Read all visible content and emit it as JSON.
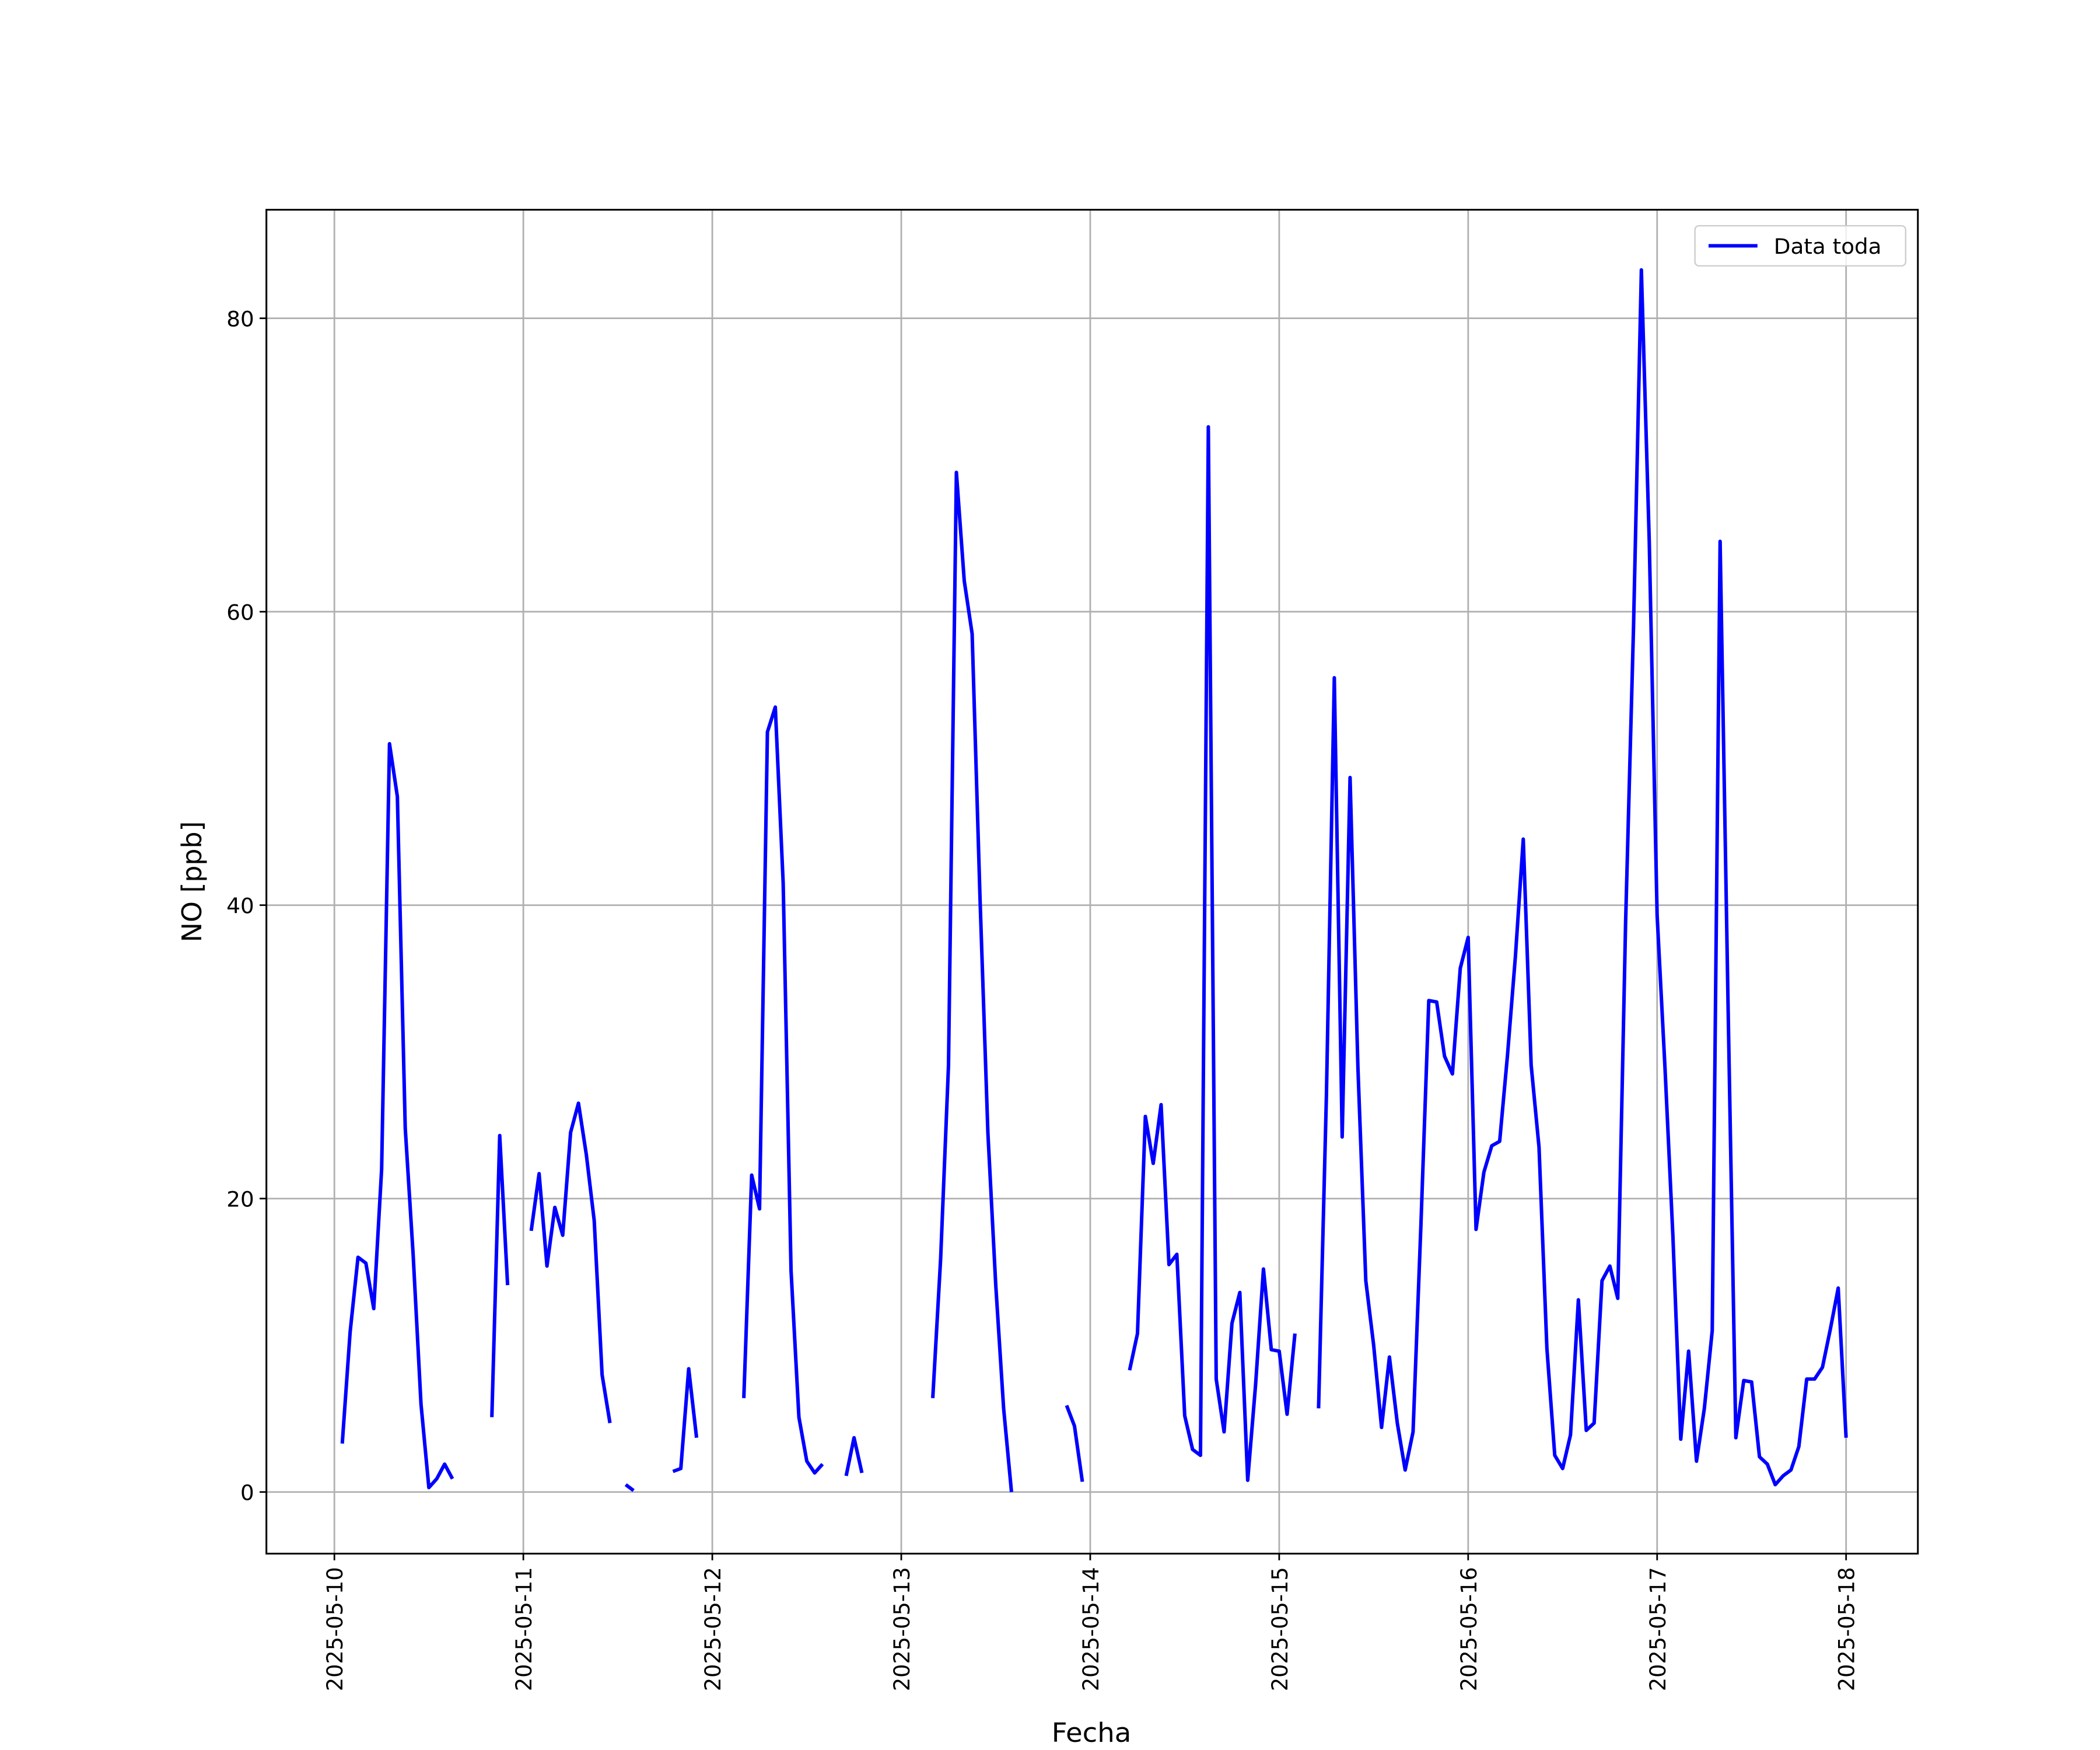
{
  "chart_data": {
    "type": "line",
    "xlabel": "Fecha",
    "ylabel": "NO [ppb]",
    "x": [
      "2025-05-10 01:00",
      "2025-05-10 02:00",
      "2025-05-10 03:00",
      "2025-05-10 04:00",
      "2025-05-10 05:00",
      "2025-05-10 06:00",
      "2025-05-10 07:00",
      "2025-05-10 08:00",
      "2025-05-10 09:00",
      "2025-05-10 10:00",
      "2025-05-10 11:00",
      "2025-05-10 12:00",
      "2025-05-10 13:00",
      "2025-05-10 14:00",
      "2025-05-10 15:00",
      "2025-05-10 16:00",
      "2025-05-10 17:00",
      "2025-05-10 18:00",
      "2025-05-10 19:00",
      "2025-05-10 20:00",
      "2025-05-10 21:00",
      "2025-05-10 22:00",
      "2025-05-10 23:00",
      "2025-05-11 00:00",
      "2025-05-11 01:00",
      "2025-05-11 02:00",
      "2025-05-11 03:00",
      "2025-05-11 04:00",
      "2025-05-11 05:00",
      "2025-05-11 06:00",
      "2025-05-11 07:00",
      "2025-05-11 08:00",
      "2025-05-11 09:00",
      "2025-05-11 10:00",
      "2025-05-11 11:00",
      "2025-05-11 12:00",
      "2025-05-11 13:00",
      "2025-05-11 14:00",
      "2025-05-11 15:00",
      "2025-05-11 16:00",
      "2025-05-11 17:00",
      "2025-05-11 18:00",
      "2025-05-11 19:00",
      "2025-05-11 20:00",
      "2025-05-11 21:00",
      "2025-05-11 22:00",
      "2025-05-11 23:00",
      "2025-05-12 00:00",
      "2025-05-12 01:00",
      "2025-05-12 02:00",
      "2025-05-12 03:00",
      "2025-05-12 04:00",
      "2025-05-12 05:00",
      "2025-05-12 06:00",
      "2025-05-12 07:00",
      "2025-05-12 08:00",
      "2025-05-12 09:00",
      "2025-05-12 10:00",
      "2025-05-12 11:00",
      "2025-05-12 12:00",
      "2025-05-12 13:00",
      "2025-05-12 14:00",
      "2025-05-12 15:00",
      "2025-05-12 16:00",
      "2025-05-12 17:00",
      "2025-05-12 18:00",
      "2025-05-12 19:00",
      "2025-05-12 20:00",
      "2025-05-12 21:00",
      "2025-05-12 22:00",
      "2025-05-12 23:00",
      "2025-05-13 00:00",
      "2025-05-13 01:00",
      "2025-05-13 02:00",
      "2025-05-13 03:00",
      "2025-05-13 04:00",
      "2025-05-13 05:00",
      "2025-05-13 06:00",
      "2025-05-13 07:00",
      "2025-05-13 08:00",
      "2025-05-13 09:00",
      "2025-05-13 10:00",
      "2025-05-13 11:00",
      "2025-05-13 12:00",
      "2025-05-13 13:00",
      "2025-05-13 14:00",
      "2025-05-13 15:00",
      "2025-05-13 16:00",
      "2025-05-13 17:00",
      "2025-05-13 18:00",
      "2025-05-13 19:00",
      "2025-05-13 20:00",
      "2025-05-13 21:00",
      "2025-05-13 22:00",
      "2025-05-13 23:00",
      "2025-05-14 00:00",
      "2025-05-14 01:00",
      "2025-05-14 02:00",
      "2025-05-14 03:00",
      "2025-05-14 04:00",
      "2025-05-14 05:00",
      "2025-05-14 06:00",
      "2025-05-14 07:00",
      "2025-05-14 08:00",
      "2025-05-14 09:00",
      "2025-05-14 10:00",
      "2025-05-14 11:00",
      "2025-05-14 12:00",
      "2025-05-14 13:00",
      "2025-05-14 14:00",
      "2025-05-14 15:00",
      "2025-05-14 16:00",
      "2025-05-14 17:00",
      "2025-05-14 18:00",
      "2025-05-14 19:00",
      "2025-05-14 20:00",
      "2025-05-14 21:00",
      "2025-05-14 22:00",
      "2025-05-14 23:00",
      "2025-05-15 00:00",
      "2025-05-15 01:00",
      "2025-05-15 02:00",
      "2025-05-15 03:00",
      "2025-05-15 04:00",
      "2025-05-15 05:00",
      "2025-05-15 06:00",
      "2025-05-15 07:00",
      "2025-05-15 08:00",
      "2025-05-15 09:00",
      "2025-05-15 10:00",
      "2025-05-15 11:00",
      "2025-05-15 12:00",
      "2025-05-15 13:00",
      "2025-05-15 14:00",
      "2025-05-15 15:00",
      "2025-05-15 16:00",
      "2025-05-15 17:00",
      "2025-05-15 18:00",
      "2025-05-15 19:00",
      "2025-05-15 20:00",
      "2025-05-15 21:00",
      "2025-05-15 22:00",
      "2025-05-15 23:00",
      "2025-05-16 00:00",
      "2025-05-16 01:00",
      "2025-05-16 02:00",
      "2025-05-16 03:00",
      "2025-05-16 04:00",
      "2025-05-16 05:00",
      "2025-05-16 06:00",
      "2025-05-16 07:00",
      "2025-05-16 08:00",
      "2025-05-16 09:00",
      "2025-05-16 10:00",
      "2025-05-16 11:00",
      "2025-05-16 12:00",
      "2025-05-16 13:00",
      "2025-05-16 14:00",
      "2025-05-16 15:00",
      "2025-05-16 16:00",
      "2025-05-16 17:00",
      "2025-05-16 18:00",
      "2025-05-16 19:00",
      "2025-05-16 20:00",
      "2025-05-16 21:00",
      "2025-05-16 22:00",
      "2025-05-16 23:00",
      "2025-05-17 00:00",
      "2025-05-17 01:00",
      "2025-05-17 02:00",
      "2025-05-17 03:00",
      "2025-05-17 04:00",
      "2025-05-17 05:00",
      "2025-05-17 06:00",
      "2025-05-17 07:00",
      "2025-05-17 08:00",
      "2025-05-17 09:00",
      "2025-05-17 10:00",
      "2025-05-17 11:00",
      "2025-05-17 12:00",
      "2025-05-17 13:00",
      "2025-05-17 14:00",
      "2025-05-17 15:00",
      "2025-05-17 16:00",
      "2025-05-17 17:00",
      "2025-05-17 18:00",
      "2025-05-17 19:00",
      "2025-05-17 20:00",
      "2025-05-17 21:00",
      "2025-05-17 22:00",
      "2025-05-17 23:00",
      "2025-05-18 00:00"
    ],
    "series": [
      {
        "name": "Data toda",
        "color": "#0000ff",
        "values": [
          3.3,
          10.9,
          16,
          15.6,
          12.5,
          22,
          51,
          47.4,
          24.8,
          16.2,
          6,
          0.3,
          0.9,
          1.9,
          0.9,
          null,
          null,
          null,
          null,
          5.1,
          24.3,
          14.1,
          null,
          null,
          17.8,
          21.7,
          15.4,
          19.4,
          17.5,
          24.5,
          26.5,
          23,
          18.5,
          8,
          4.7,
          null,
          0.5,
          0.1,
          null,
          null,
          null,
          null,
          1.4,
          1.6,
          8.4,
          3.7,
          null,
          null,
          null,
          null,
          null,
          6.4,
          21.6,
          19.3,
          51.8,
          53.5,
          41.5,
          15.1,
          5.1,
          2.1,
          1.3,
          1.9,
          null,
          null,
          1.1,
          3.7,
          1.3,
          null,
          null,
          null,
          null,
          null,
          null,
          null,
          null,
          6.4,
          15.9,
          29.1,
          69.5,
          62.1,
          58.5,
          40.5,
          24.5,
          14.1,
          5.7,
          0,
          null,
          null,
          null,
          null,
          null,
          null,
          5.9,
          4.5,
          0.7,
          null,
          null,
          null,
          null,
          null,
          8.3,
          10.8,
          25.6,
          22.4,
          26.4,
          15.5,
          16.2,
          5.2,
          2.9,
          2.5,
          72.6,
          7.7,
          4.1,
          11.5,
          13.6,
          0.8,
          7.3,
          15.2,
          9.7,
          9.6,
          5.3,
          10.8,
          null,
          null,
          5.7,
          27.1,
          55.5,
          24.2,
          48.7,
          28.9,
          14.4,
          10,
          4.4,
          9.2,
          4.7,
          1.5,
          4.1,
          18.2,
          33.5,
          33.4,
          29.7,
          28.5,
          35.7,
          37.8,
          17.9,
          21.8,
          23.6,
          23.9,
          29.8,
          36.5,
          44.5,
          29.1,
          23.5,
          9.8,
          2.5,
          1.6,
          3.9,
          13.1,
          4.2,
          4.7,
          14.4,
          15.4,
          13.2,
          38.9,
          58.9,
          83.3,
          64.8,
          39.3,
          28.9,
          17.5,
          3.6,
          9.6,
          2.1,
          5.7,
          11,
          64.8,
          33.5,
          3.7,
          7.6,
          7.5,
          2.4,
          1.9,
          0.5,
          1.1,
          1.5,
          3.1,
          7.7,
          7.7,
          8.5,
          11.1,
          13.9,
          3.7
        ]
      }
    ],
    "xlim": [
      "2025-05-09 15:22",
      "2025-05-18 09:07"
    ],
    "xticks": [
      "2025-05-10",
      "2025-05-11",
      "2025-05-12",
      "2025-05-13",
      "2025-05-14",
      "2025-05-15",
      "2025-05-16",
      "2025-05-17",
      "2025-05-18"
    ],
    "ylim": [
      -4.2,
      87.4
    ],
    "yticks": [
      0,
      20,
      40,
      60,
      80
    ],
    "grid": true,
    "legend": "upper right"
  }
}
